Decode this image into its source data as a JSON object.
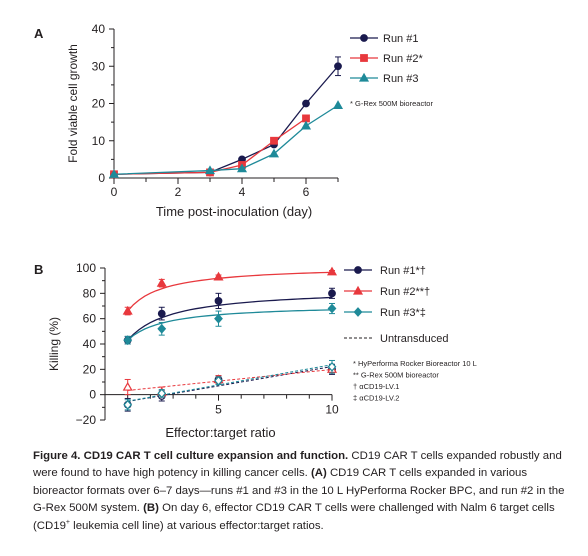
{
  "colors": {
    "run1": "#1a1a4e",
    "run2": "#e8383d",
    "run3": "#1f8a99",
    "run2_panelA": "#e8383d",
    "axis": "#231f20"
  },
  "panel_a": {
    "label": "A"
  },
  "panel_b": {
    "label": "B"
  },
  "chart_data": [
    {
      "type": "line",
      "panel": "A",
      "xlabel": "Time post-inoculation (day)",
      "ylabel": "Fold viable cell growth",
      "xlim": [
        0,
        7
      ],
      "ylim": [
        0,
        40
      ],
      "xticks": [
        0,
        2,
        4,
        6
      ],
      "yticks": [
        0,
        10,
        20,
        30,
        40
      ],
      "legend_position": "top-right",
      "footnote": "* G-Rex 500M bioreactor",
      "series": [
        {
          "name": "Run #1",
          "color_key": "run1",
          "marker": "circle",
          "x": [
            0,
            3,
            4,
            5,
            6,
            7
          ],
          "y": [
            1,
            1.5,
            5,
            9,
            20,
            30
          ],
          "yerr": [
            0,
            0,
            0,
            0,
            0,
            2.5
          ]
        },
        {
          "name": "Run #2*",
          "color_key": "run2_panelA",
          "marker": "square",
          "x": [
            0,
            3,
            4,
            5,
            6
          ],
          "y": [
            1,
            1.5,
            3.5,
            10,
            16
          ],
          "yerr": [
            0,
            0,
            0,
            0,
            0
          ]
        },
        {
          "name": "Run #3",
          "color_key": "run3",
          "marker": "triangle",
          "x": [
            0,
            3,
            4,
            5,
            6,
            7
          ],
          "y": [
            1,
            2,
            2.5,
            6.5,
            14,
            19.5
          ],
          "yerr": [
            0,
            0,
            0,
            0,
            0,
            0
          ]
        }
      ]
    },
    {
      "type": "scatter",
      "panel": "B",
      "xlabel": "Effector:target ratio",
      "ylabel": "Killing (%)",
      "xlim": [
        0,
        10
      ],
      "ylim": [
        -20,
        100
      ],
      "xticks": [
        5,
        10
      ],
      "yticks": [
        -20,
        0,
        20,
        40,
        60,
        80,
        100
      ],
      "x": [
        1,
        2.5,
        5,
        10
      ],
      "legend_position": "right",
      "untransduced_label": "Untransduced",
      "footnotes": [
        "* HyPerforma Rocker Bioreactor 10 L",
        "** G-Rex 500M bioreactor",
        "† αCD19-LV.1",
        "‡ αCD19-LV.2"
      ],
      "series": [
        {
          "name": "Run #1*†",
          "color_key": "run1",
          "marker": "circle",
          "y": [
            43,
            64,
            74,
            80
          ],
          "yerr": [
            3,
            5,
            6,
            4
          ]
        },
        {
          "name": "Run #2**†",
          "color_key": "run2",
          "marker": "triangle",
          "y": [
            66,
            88,
            93,
            97
          ],
          "yerr": [
            3,
            3,
            1.5,
            1
          ]
        },
        {
          "name": "Run #3*‡",
          "color_key": "run3",
          "marker": "diamond",
          "y": [
            43,
            52,
            60,
            68
          ],
          "yerr": [
            3,
            5,
            6,
            4
          ]
        },
        {
          "name": "Untransduced Run #1",
          "color_key": "run1",
          "marker": "circle-open",
          "dashed": true,
          "y": [
            -8,
            -1,
            12,
            20
          ],
          "yerr": [
            5,
            4,
            3,
            4
          ]
        },
        {
          "name": "Untransduced Run #2",
          "color_key": "run2",
          "marker": "triangle-open",
          "dashed": true,
          "y": [
            6,
            2,
            12,
            20
          ],
          "yerr": [
            6,
            4,
            3,
            3
          ]
        },
        {
          "name": "Untransduced Run #3",
          "color_key": "run3",
          "marker": "diamond-open",
          "dashed": true,
          "y": [
            -8,
            1,
            11,
            22
          ],
          "yerr": [
            4,
            3,
            3,
            5
          ]
        }
      ]
    }
  ],
  "caption": {
    "title": "Figure 4. CD19 CAR T cell culture expansion and function.",
    "text1": " CD19 CAR T cells expanded robustly and were found to have high potency in killing cancer cells. ",
    "label_a": "(A)",
    "text2": " CD19 CAR T cells expanded in various bioreactor formats over 6–7 days—runs #1 and #3 in the 10 L HyPerforma Rocker BPC, and run #2 in the G-Rex 500M system. ",
    "label_b": "(B)",
    "text3": " On day 6, effector CD19 CAR T cells were challenged with Nalm 6 target cells (CD19",
    "sup": "+",
    "text4": " leukemia cell line) at various effector:target ratios."
  }
}
